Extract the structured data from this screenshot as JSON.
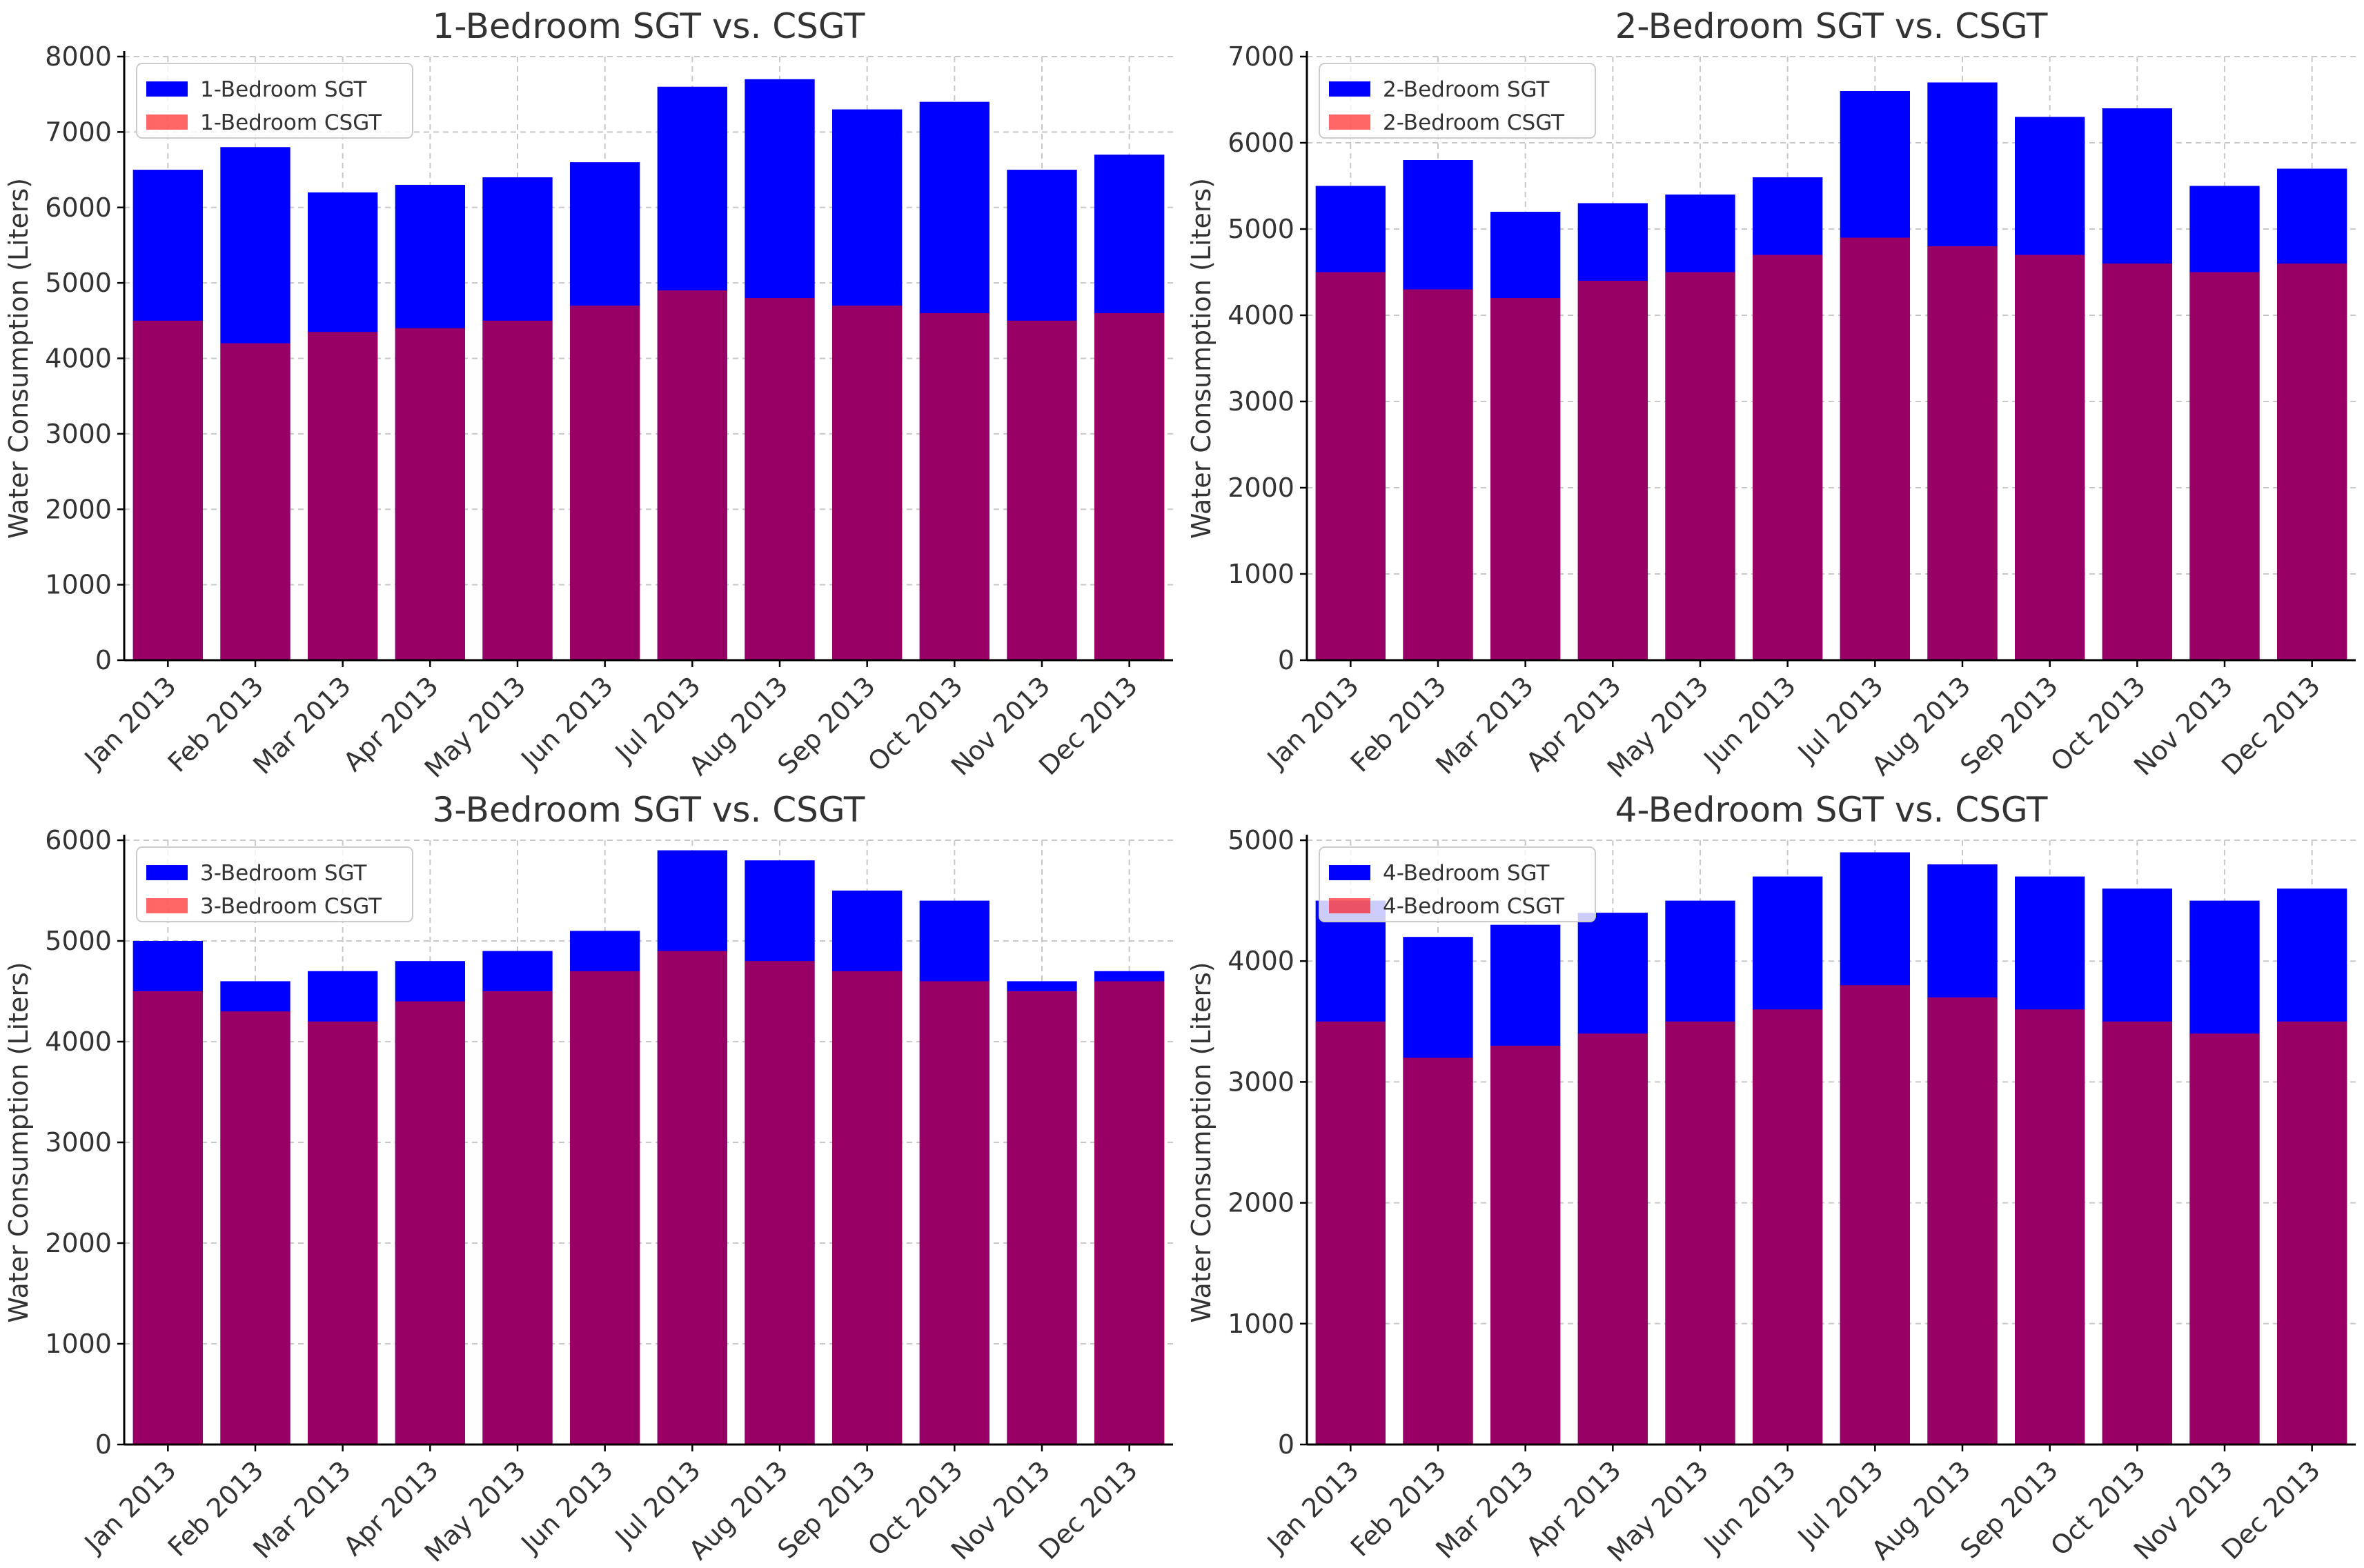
{
  "chart_data": [
    {
      "type": "bar",
      "title": "1-Bedroom SGT vs. CSGT",
      "xlabel": "",
      "ylabel": "Water Consumption (Liters)",
      "ylim": [
        0,
        8000
      ],
      "yticks": [
        0,
        1000,
        2000,
        3000,
        4000,
        5000,
        6000,
        7000,
        8000
      ],
      "grid": true,
      "legend_position": "top-left",
      "categories": [
        "Jan 2013",
        "Feb 2013",
        "Mar 2013",
        "Apr 2013",
        "May 2013",
        "Jun 2013",
        "Jul 2013",
        "Aug 2013",
        "Sep 2013",
        "Oct 2013",
        "Nov 2013",
        "Dec 2013"
      ],
      "series": [
        {
          "name": "1-Bedroom SGT",
          "color": "#0000ff",
          "values": [
            6500,
            6800,
            6200,
            6300,
            6400,
            6600,
            7600,
            7700,
            7300,
            7400,
            6500,
            6700
          ]
        },
        {
          "name": "1-Bedroom CSGT",
          "color": "#ff0000",
          "alpha": 0.6,
          "values": [
            4500,
            4200,
            4350,
            4400,
            4500,
            4700,
            4900,
            4800,
            4700,
            4600,
            4500,
            4600
          ]
        }
      ]
    },
    {
      "type": "bar",
      "title": "2-Bedroom SGT vs. CSGT",
      "xlabel": "",
      "ylabel": "Water Consumption (Liters)",
      "ylim": [
        0,
        7000
      ],
      "yticks": [
        0,
        1000,
        2000,
        3000,
        4000,
        5000,
        6000,
        7000
      ],
      "grid": true,
      "legend_position": "top-left",
      "categories": [
        "Jan 2013",
        "Feb 2013",
        "Mar 2013",
        "Apr 2013",
        "May 2013",
        "Jun 2013",
        "Jul 2013",
        "Aug 2013",
        "Sep 2013",
        "Oct 2013",
        "Nov 2013",
        "Dec 2013"
      ],
      "series": [
        {
          "name": "2-Bedroom SGT",
          "color": "#0000ff",
          "values": [
            5500,
            5800,
            5200,
            5300,
            5400,
            5600,
            6600,
            6700,
            6300,
            6400,
            5500,
            5700
          ]
        },
        {
          "name": "2-Bedroom CSGT",
          "color": "#ff0000",
          "alpha": 0.6,
          "values": [
            4500,
            4300,
            4200,
            4400,
            4500,
            4700,
            4900,
            4800,
            4700,
            4600,
            4500,
            4600
          ]
        }
      ]
    },
    {
      "type": "bar",
      "title": "3-Bedroom SGT vs. CSGT",
      "xlabel": "",
      "ylabel": "Water Consumption (Liters)",
      "ylim": [
        0,
        6000
      ],
      "yticks": [
        0,
        1000,
        2000,
        3000,
        4000,
        5000,
        6000
      ],
      "grid": true,
      "legend_position": "top-left",
      "categories": [
        "Jan 2013",
        "Feb 2013",
        "Mar 2013",
        "Apr 2013",
        "May 2013",
        "Jun 2013",
        "Jul 2013",
        "Aug 2013",
        "Sep 2013",
        "Oct 2013",
        "Nov 2013",
        "Dec 2013"
      ],
      "series": [
        {
          "name": "3-Bedroom SGT",
          "color": "#0000ff",
          "values": [
            5000,
            4600,
            4700,
            4800,
            4900,
            5100,
            5900,
            5800,
            5500,
            5400,
            4600,
            4700
          ]
        },
        {
          "name": "3-Bedroom CSGT",
          "color": "#ff0000",
          "alpha": 0.6,
          "values": [
            4500,
            4300,
            4200,
            4400,
            4500,
            4700,
            4900,
            4800,
            4700,
            4600,
            4500,
            4600
          ]
        }
      ]
    },
    {
      "type": "bar",
      "title": "4-Bedroom SGT vs. CSGT",
      "xlabel": "",
      "ylabel": "Water Consumption (Liters)",
      "ylim": [
        0,
        5000
      ],
      "yticks": [
        0,
        1000,
        2000,
        3000,
        4000,
        5000
      ],
      "grid": true,
      "legend_position": "top-left",
      "categories": [
        "Jan 2013",
        "Feb 2013",
        "Mar 2013",
        "Apr 2013",
        "May 2013",
        "Jun 2013",
        "Jul 2013",
        "Aug 2013",
        "Sep 2013",
        "Oct 2013",
        "Nov 2013",
        "Dec 2013"
      ],
      "series": [
        {
          "name": "4-Bedroom SGT",
          "color": "#0000ff",
          "values": [
            4500,
            4200,
            4300,
            4400,
            4500,
            4700,
            4900,
            4800,
            4700,
            4600,
            4500,
            4600
          ]
        },
        {
          "name": "4-Bedroom CSGT",
          "color": "#ff0000",
          "alpha": 0.6,
          "values": [
            3500,
            3200,
            3300,
            3400,
            3500,
            3600,
            3800,
            3700,
            3600,
            3500,
            3400,
            3500
          ]
        }
      ]
    }
  ]
}
